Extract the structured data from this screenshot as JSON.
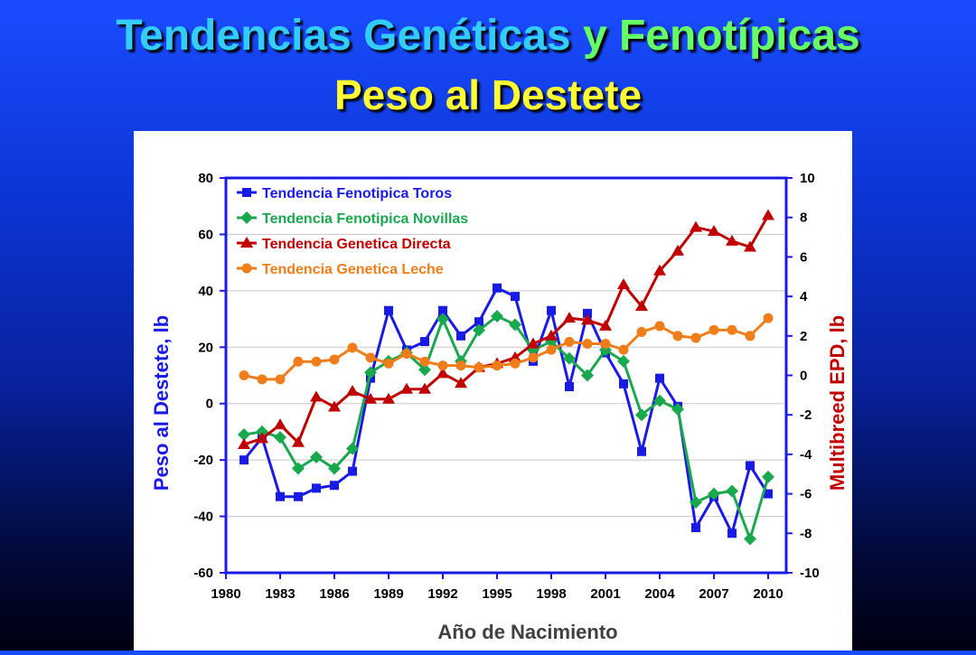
{
  "slide": {
    "title_part1": "Tendencias Genéticas",
    "title_part2": "y Fenotípicas",
    "subtitle": "Peso al Destete",
    "colors": {
      "title_cyan": "#33ccff",
      "title_green": "#66ff66",
      "subtitle_yellow": "#ffff33"
    }
  },
  "chart_data": {
    "type": "line",
    "xlabel": "Año de Nacimiento",
    "ylabel_left": "Peso al Destete, lb",
    "ylabel_right": "Multibreed EPD, lb",
    "x": [
      1981,
      1982,
      1983,
      1984,
      1985,
      1986,
      1987,
      1988,
      1989,
      1990,
      1991,
      1992,
      1993,
      1994,
      1995,
      1996,
      1997,
      1998,
      1999,
      2000,
      2001,
      2002,
      2003,
      2004,
      2005,
      2006,
      2007,
      2008,
      2009,
      2010
    ],
    "xlim": [
      1980,
      2011
    ],
    "xticks": [
      1980,
      1983,
      1986,
      1989,
      1992,
      1995,
      1998,
      2001,
      2004,
      2007,
      2010
    ],
    "ylim_left": [
      -60,
      80
    ],
    "yticks_left": [
      -60,
      -40,
      -20,
      0,
      20,
      40,
      60,
      80
    ],
    "ylim_right": [
      -10,
      10
    ],
    "yticks_right": [
      -10,
      -8,
      -6,
      -4,
      -2,
      0,
      2,
      4,
      6,
      8,
      10
    ],
    "grid": true,
    "legend_position": "top-left",
    "series": [
      {
        "name": "Tendencia Fenotipica Toros",
        "axis": "left",
        "color": "#1a1ae6",
        "marker": "square",
        "values": [
          -20,
          -12,
          -33,
          -33,
          -30,
          -29,
          -24,
          9,
          33,
          19,
          22,
          33,
          24,
          29,
          41,
          38,
          15,
          33,
          6,
          32,
          18,
          7,
          -17,
          9,
          -1,
          -44,
          -33,
          -46,
          -22,
          -32
        ]
      },
      {
        "name": "Tendencia Fenotipica Novillas",
        "axis": "left",
        "color": "#1aa84e",
        "marker": "diamond",
        "values": [
          -11,
          -10,
          -12,
          -23,
          -19,
          -23,
          -16,
          11,
          15,
          18,
          12,
          30,
          15,
          26,
          31,
          28,
          19,
          22,
          16,
          10,
          19,
          15,
          -4,
          1,
          -2,
          -35,
          -32,
          -31,
          -48,
          -26
        ]
      },
      {
        "name": "Tendencia Genetica Directa",
        "axis": "right",
        "color": "#c00000",
        "marker": "triangle",
        "values": [
          -3.5,
          -3.2,
          -2.5,
          -3.4,
          -1.1,
          -1.6,
          -0.8,
          -1.2,
          -1.2,
          -0.7,
          -0.7,
          0.1,
          -0.4,
          0.4,
          0.6,
          0.9,
          1.6,
          2.0,
          2.9,
          2.8,
          2.5,
          4.6,
          3.5,
          5.3,
          6.3,
          7.5,
          7.3,
          6.8,
          6.5,
          8.1
        ]
      },
      {
        "name": "Tendencia Genetica Leche",
        "axis": "right",
        "color": "#ee7d1a",
        "marker": "circle",
        "values": [
          0.0,
          -0.2,
          -0.2,
          0.7,
          0.7,
          0.8,
          1.4,
          0.9,
          0.6,
          1.1,
          0.7,
          0.5,
          0.5,
          0.4,
          0.5,
          0.6,
          0.9,
          1.3,
          1.7,
          1.6,
          1.6,
          1.3,
          2.2,
          2.5,
          2.0,
          1.9,
          2.3,
          2.3,
          2.0,
          2.9
        ]
      }
    ]
  }
}
